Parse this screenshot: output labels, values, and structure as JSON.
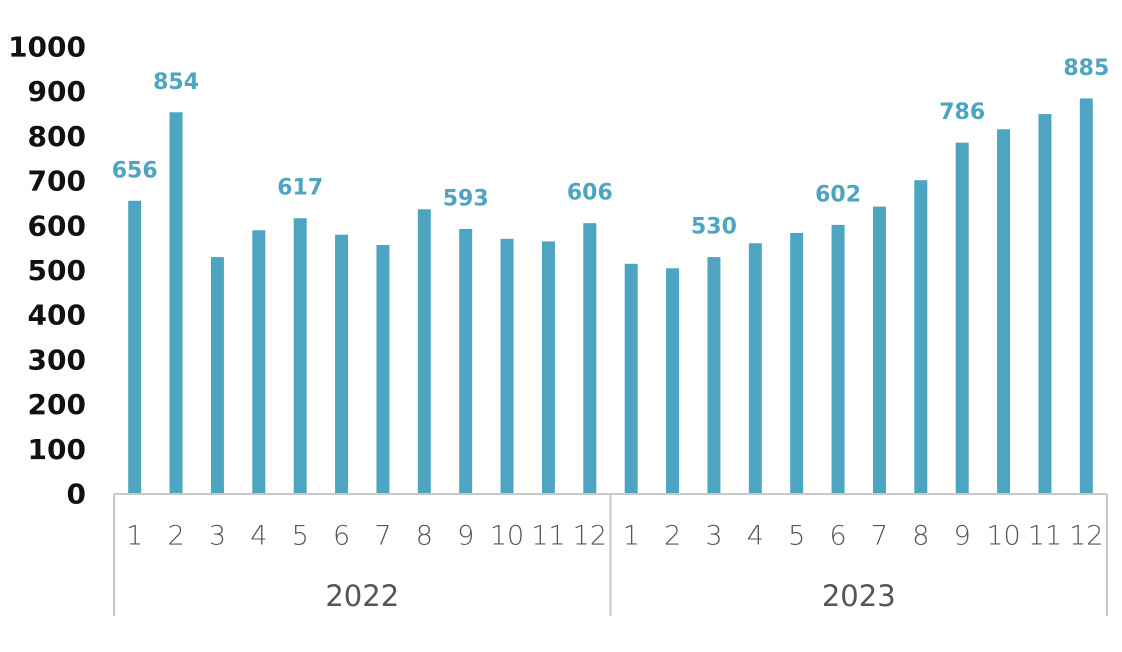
{
  "chart_data": {
    "type": "bar",
    "title": "",
    "xlabel": "",
    "ylabel": "",
    "ylim": [
      0,
      1000
    ],
    "yticks": [
      "0",
      "100",
      "200",
      "300",
      "400",
      "500",
      "600",
      "700",
      "800",
      "900",
      "1000"
    ],
    "grid": false,
    "legend": "none",
    "bar_color": "#4EA5C2",
    "label_color": "#4EA5C2",
    "groups": [
      {
        "label": "2022",
        "categories": [
          "1",
          "2",
          "3",
          "4",
          "5",
          "6",
          "7",
          "8",
          "9",
          "10",
          "11",
          "12"
        ],
        "values": [
          656,
          854,
          530,
          590,
          617,
          580,
          557,
          637,
          593,
          571,
          565,
          606
        ],
        "labeled_months": [
          "1",
          "2",
          "5",
          "9",
          "12"
        ]
      },
      {
        "label": "2023",
        "categories": [
          "1",
          "2",
          "3",
          "4",
          "5",
          "6",
          "7",
          "8",
          "9",
          "10",
          "11",
          "12"
        ],
        "values": [
          515,
          505,
          530,
          561,
          584,
          602,
          643,
          702,
          786,
          816,
          850,
          885
        ],
        "labeled_months": [
          "3",
          "6",
          "9",
          "12"
        ]
      }
    ]
  }
}
